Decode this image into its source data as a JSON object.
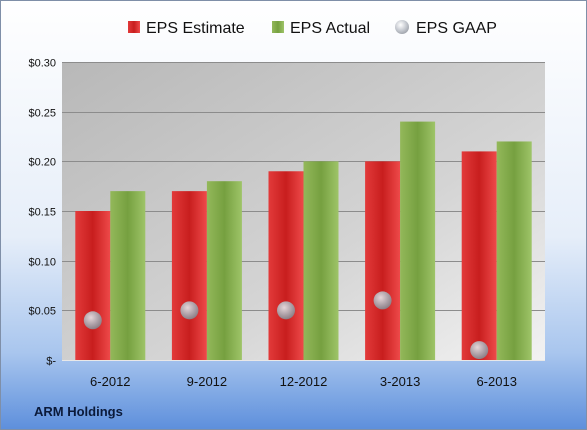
{
  "footer_label": "ARM Holdings",
  "colors": {
    "estimate": "#d42a2a",
    "actual": "#84a84a",
    "gaap": "#b8bcc4"
  },
  "chart_data": {
    "type": "bar",
    "title": "",
    "xlabel": "",
    "ylabel": "",
    "categories": [
      "6-2012",
      "9-2012",
      "12-2012",
      "3-2013",
      "6-2013"
    ],
    "ylim": [
      0,
      0.3
    ],
    "yticks": [
      0,
      0.05,
      0.1,
      0.15,
      0.2,
      0.25,
      0.3
    ],
    "ytick_labels": [
      "$-",
      "$0.05",
      "$0.10",
      "$0.15",
      "$0.20",
      "$0.25",
      "$0.30"
    ],
    "grid": true,
    "legend_position": "top",
    "series": [
      {
        "name": "EPS Estimate",
        "type": "bar",
        "values": [
          0.15,
          0.17,
          0.19,
          0.2,
          0.21
        ]
      },
      {
        "name": "EPS Actual",
        "type": "bar",
        "values": [
          0.17,
          0.18,
          0.2,
          0.24,
          0.22
        ]
      },
      {
        "name": "EPS GAAP",
        "type": "scatter",
        "values": [
          0.04,
          0.05,
          0.05,
          0.06,
          0.01
        ]
      }
    ]
  }
}
